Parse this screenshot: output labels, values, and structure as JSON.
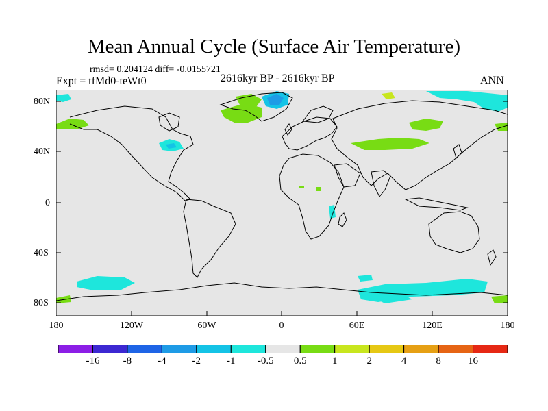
{
  "title": "Mean Annual Cycle (Surface Air Temperature)",
  "stats": "rmsd= 0.204124 diff= -0.0155721",
  "experiment": "Expt = tfMd0-teWt0",
  "period": "2616kyr BP - 2616kyr BP",
  "season": "ANN",
  "lat_labels": [
    "80N",
    "40N",
    "0",
    "40S",
    "80S"
  ],
  "lon_labels": [
    "180",
    "120W",
    "60W",
    "0",
    "60E",
    "120E",
    "180"
  ],
  "colorbar": {
    "labels": [
      "-16",
      "-8",
      "-4",
      "-2",
      "-1",
      "-0.5",
      "0.5",
      "1",
      "2",
      "4",
      "8",
      "16"
    ],
    "colors": [
      "#8c1ee6",
      "#3c28d2",
      "#1e64e6",
      "#1e9be6",
      "#14c3e6",
      "#1ee6dc",
      "#e6e6e6",
      "#78dc14",
      "#c8e61e",
      "#e6c814",
      "#e6a014",
      "#e66414",
      "#e62814"
    ]
  },
  "map_colors": {
    "background": "#e6e6e6",
    "cool": "#1ee6dc",
    "cooler": "#14c3e6",
    "coolest": "#1e9be6",
    "warm": "#78dc14",
    "warmer": "#c8e61e",
    "coastline": "#000000"
  }
}
